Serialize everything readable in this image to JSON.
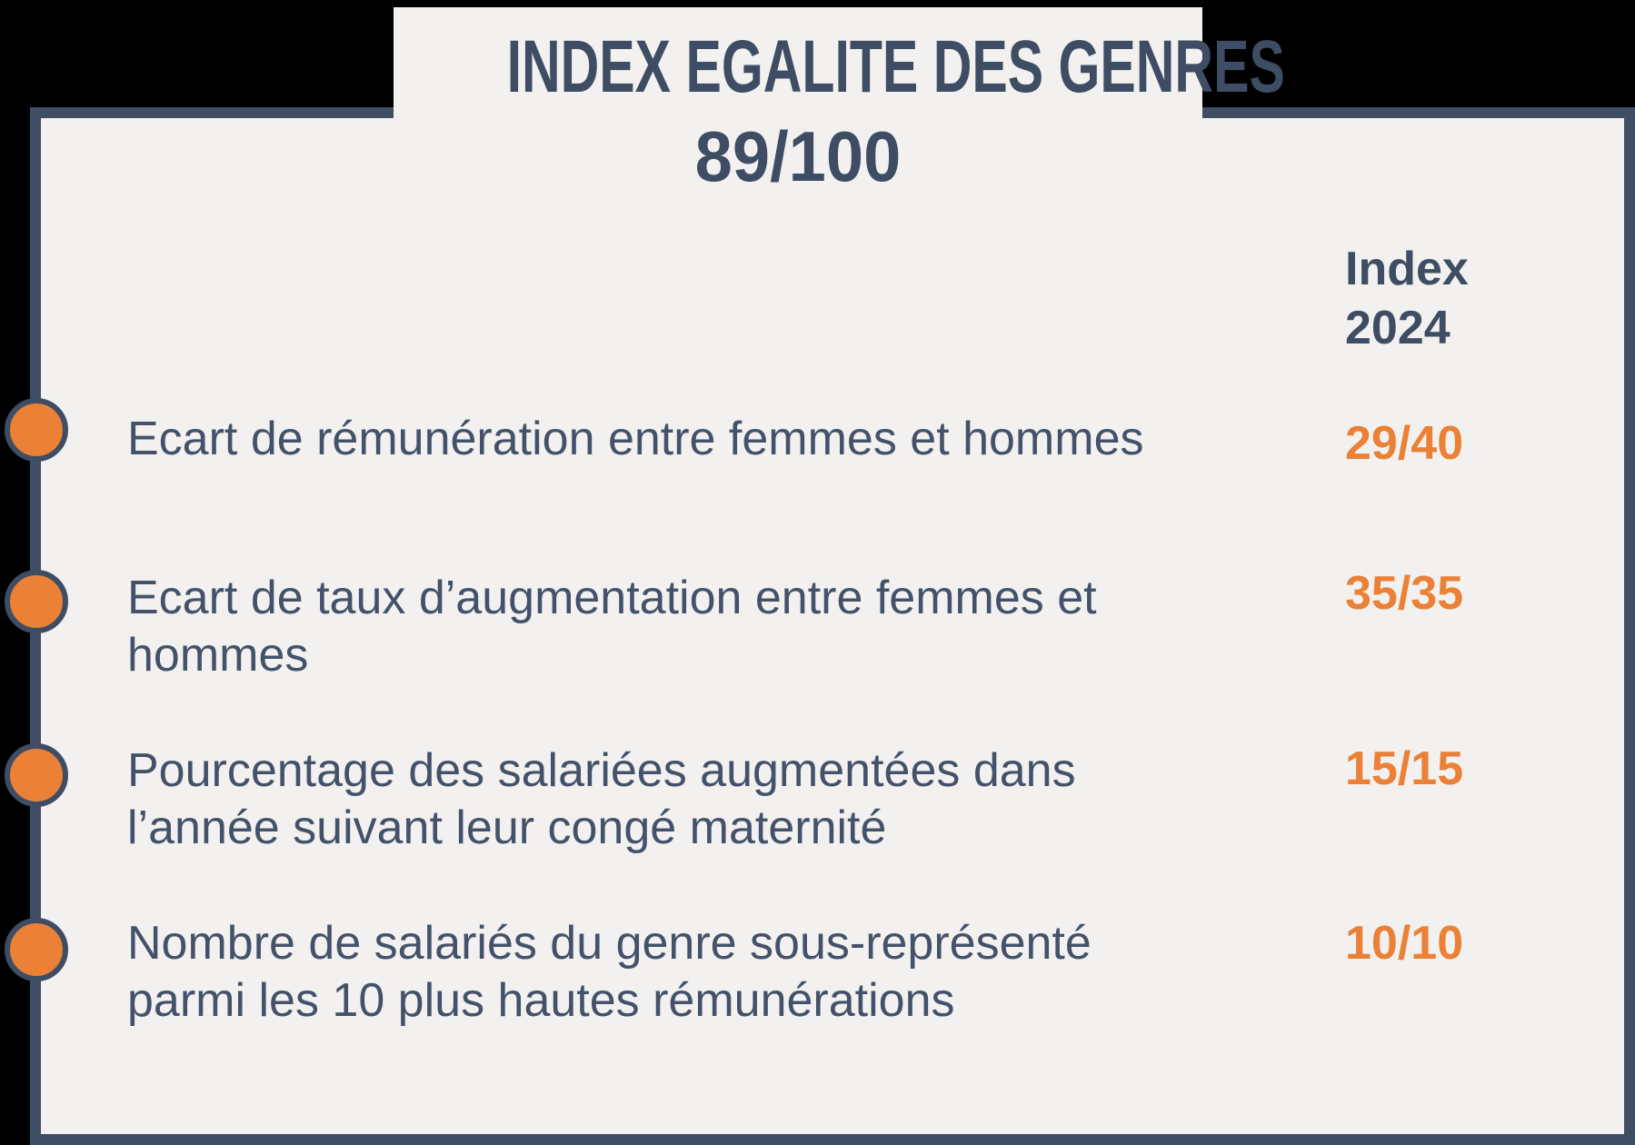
{
  "header": {
    "title": "INDEX EGALITE DES GENRES",
    "overall_score": "89/100"
  },
  "column_header": {
    "line1": "Index",
    "line2": "2024"
  },
  "rows": [
    {
      "label": "Ecart de rémunération entre femmes et hommes",
      "score": "29/40"
    },
    {
      "label": "Ecart de taux d’augmentation entre femmes et hommes",
      "score": "35/35"
    },
    {
      "label": "Pourcentage des salariées augmentées dans l’année suivant leur congé maternité",
      "score": "15/15"
    },
    {
      "label": "Nombre de salariés du genre sous-représenté parmi les 10 plus hautes rémunérations",
      "score": "10/10"
    }
  ],
  "colors": {
    "background": "#000000",
    "card_background": "#f2f1ef",
    "border_and_text": "#3e4d64",
    "accent_orange": "#ea8136"
  }
}
